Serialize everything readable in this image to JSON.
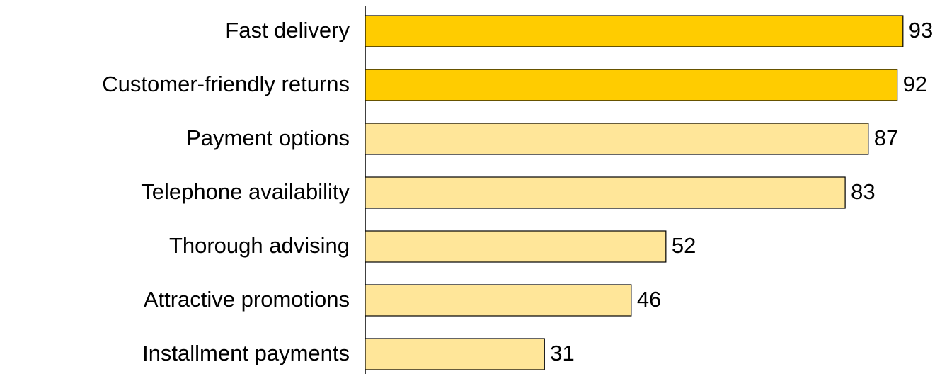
{
  "chart_data": {
    "type": "barh",
    "categories": [
      "Fast delivery",
      "Customer-friendly returns",
      "Payment options",
      "Telephone availability",
      "Thorough advising",
      "Attractive promotions",
      "Installment payments"
    ],
    "values": [
      93,
      92,
      87,
      83,
      52,
      46,
      31
    ],
    "colors": [
      "#ffcc00",
      "#ffcc00",
      "#ffe699",
      "#ffe699",
      "#ffe699",
      "#ffe699",
      "#ffe699"
    ],
    "xlim": [
      0,
      100
    ]
  }
}
